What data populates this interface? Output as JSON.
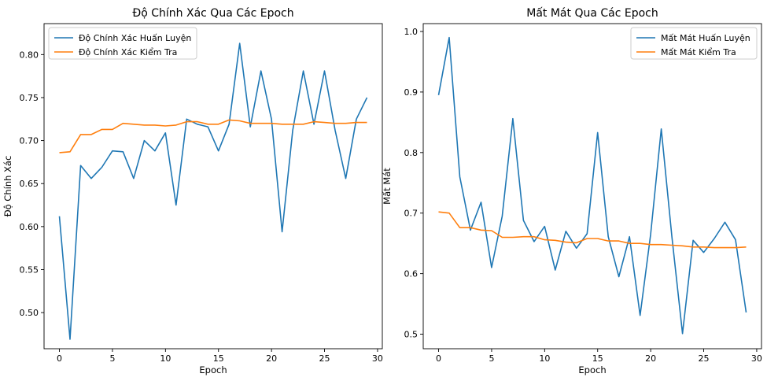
{
  "chart_data": [
    {
      "type": "line",
      "title": "Độ Chính Xác Qua Các Epoch",
      "xlabel": "Epoch",
      "ylabel": "Độ Chính Xác",
      "xlim": [
        -1.45,
        30.45
      ],
      "ylim": [
        0.458,
        0.836
      ],
      "xticks": [
        0,
        5,
        10,
        15,
        20,
        25,
        30
      ],
      "yticks": [
        0.5,
        0.55,
        0.6,
        0.65,
        0.7,
        0.75,
        0.8
      ],
      "ytick_format": 2,
      "legend": "top-left",
      "grid": false,
      "x": [
        0,
        1,
        2,
        3,
        4,
        5,
        6,
        7,
        8,
        9,
        10,
        11,
        12,
        13,
        14,
        15,
        16,
        17,
        18,
        19,
        20,
        21,
        22,
        23,
        24,
        25,
        26,
        27,
        28,
        29
      ],
      "series": [
        {
          "name": "Độ Chính Xác Huấn Luyện",
          "color": "#1f77b4",
          "values": [
            0.612,
            0.469,
            0.671,
            0.656,
            0.669,
            0.688,
            0.687,
            0.656,
            0.7,
            0.688,
            0.709,
            0.625,
            0.725,
            0.719,
            0.716,
            0.688,
            0.719,
            0.813,
            0.716,
            0.781,
            0.725,
            0.594,
            0.712,
            0.781,
            0.719,
            0.781,
            0.712,
            0.656,
            0.725,
            0.75
          ]
        },
        {
          "name": "Độ Chính Xác Kiểm Tra",
          "color": "#ff7f0e",
          "values": [
            0.686,
            0.687,
            0.707,
            0.707,
            0.713,
            0.713,
            0.72,
            0.719,
            0.718,
            0.718,
            0.717,
            0.718,
            0.722,
            0.722,
            0.719,
            0.719,
            0.724,
            0.723,
            0.72,
            0.72,
            0.72,
            0.719,
            0.719,
            0.719,
            0.722,
            0.721,
            0.72,
            0.72,
            0.721,
            0.721
          ]
        }
      ]
    },
    {
      "type": "line",
      "title": "Mất Mát Qua Các Epoch",
      "xlabel": "Epoch",
      "ylabel": "Mất Mát",
      "xlim": [
        -1.45,
        30.45
      ],
      "ylim": [
        0.476,
        1.013
      ],
      "xticks": [
        0,
        5,
        10,
        15,
        20,
        25,
        30
      ],
      "yticks": [
        0.5,
        0.6,
        0.7,
        0.8,
        0.9,
        1.0
      ],
      "ytick_format": 1,
      "legend": "top-right",
      "grid": false,
      "x": [
        0,
        1,
        2,
        3,
        4,
        5,
        6,
        7,
        8,
        9,
        10,
        11,
        12,
        13,
        14,
        15,
        16,
        17,
        18,
        19,
        20,
        21,
        22,
        23,
        24,
        25,
        26,
        27,
        28,
        29
      ],
      "series": [
        {
          "name": "Mất Mát Huấn Luyện",
          "color": "#1f77b4",
          "values": [
            0.895,
            0.99,
            0.76,
            0.672,
            0.718,
            0.61,
            0.695,
            0.856,
            0.688,
            0.653,
            0.678,
            0.606,
            0.67,
            0.642,
            0.666,
            0.833,
            0.661,
            0.595,
            0.661,
            0.531,
            0.665,
            0.839,
            0.661,
            0.501,
            0.655,
            0.635,
            0.658,
            0.685,
            0.656,
            0.536
          ]
        },
        {
          "name": "Mất Mát Kiểm Tra",
          "color": "#ff7f0e",
          "values": [
            0.702,
            0.7,
            0.676,
            0.676,
            0.672,
            0.671,
            0.66,
            0.66,
            0.661,
            0.661,
            0.656,
            0.655,
            0.652,
            0.651,
            0.658,
            0.658,
            0.654,
            0.654,
            0.65,
            0.65,
            0.648,
            0.648,
            0.647,
            0.646,
            0.644,
            0.644,
            0.643,
            0.643,
            0.643,
            0.644
          ]
        }
      ]
    }
  ]
}
